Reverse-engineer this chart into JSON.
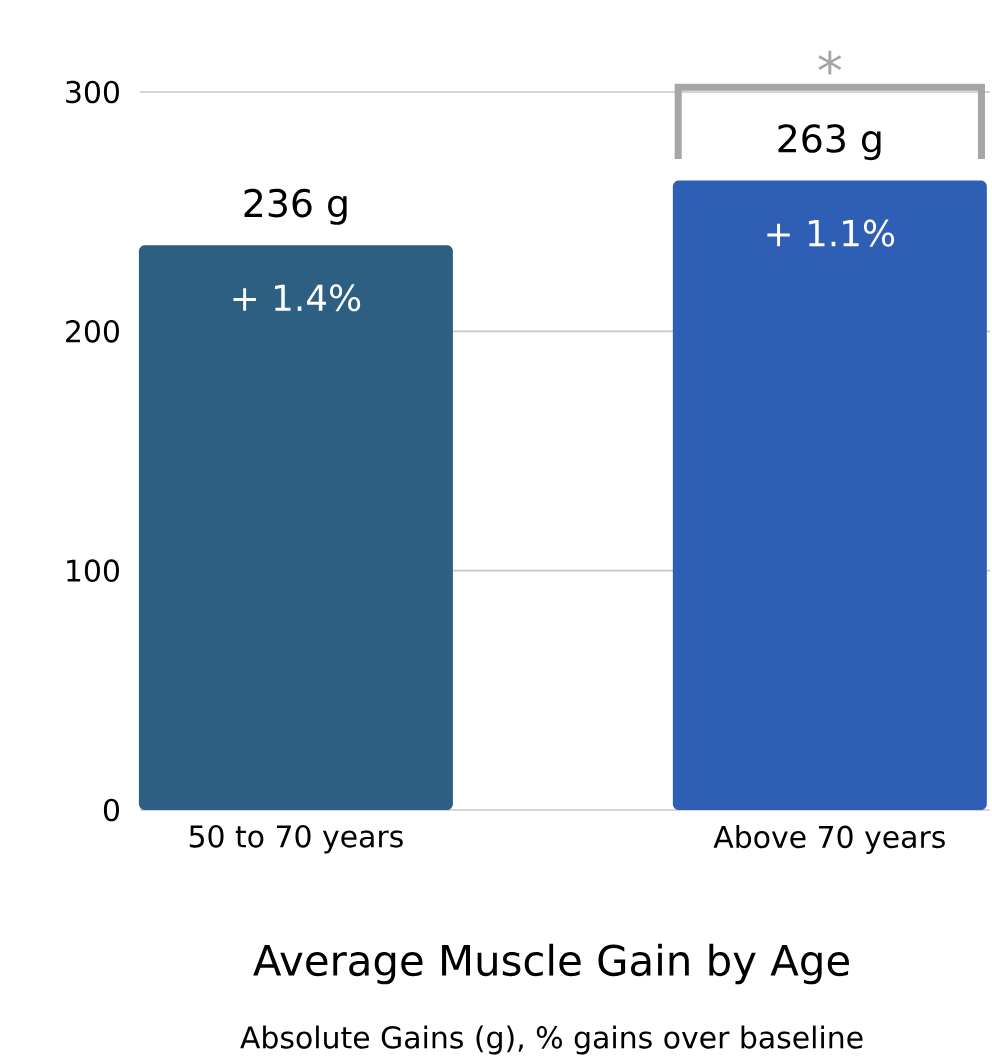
{
  "chart_data": {
    "type": "bar",
    "title": "Average Muscle Gain by Age",
    "subtitle": "Absolute Gains (g), % gains over baseline",
    "categories": [
      "50 to 70 years",
      "Above 70 years"
    ],
    "values": [
      236,
      263
    ],
    "colors": [
      "#2d5f83",
      "#2f5fb4"
    ],
    "value_labels": [
      "236 g",
      "263 g"
    ],
    "annotations": [
      "+ 1.4%",
      "+ 1.1%",
      "*"
    ],
    "ylim": [
      0,
      300
    ],
    "yticks": [
      0,
      100,
      200,
      300
    ],
    "grid": "y"
  }
}
